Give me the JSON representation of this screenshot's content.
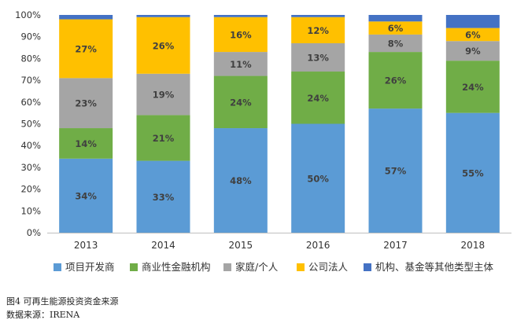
{
  "chart_data": {
    "type": "bar",
    "stacked": true,
    "percent": true,
    "categories": [
      "2013",
      "2014",
      "2015",
      "2016",
      "2017",
      "2018"
    ],
    "series": [
      {
        "name": "项目开发商",
        "color": "#5b9bd5",
        "values": [
          34,
          33,
          48,
          50,
          57,
          55
        ]
      },
      {
        "name": "商业性金融机构",
        "color": "#70ad47",
        "values": [
          14,
          21,
          24,
          24,
          26,
          24
        ]
      },
      {
        "name": "家庭/个人",
        "color": "#a5a5a5",
        "values": [
          23,
          19,
          11,
          13,
          8,
          9
        ]
      },
      {
        "name": "公司法人",
        "color": "#ffc000",
        "values": [
          27,
          26,
          16,
          12,
          6,
          6
        ]
      },
      {
        "name": "机构、基金等其他类型主体",
        "color": "#4472c4",
        "values": [
          2,
          1,
          1,
          1,
          3,
          6
        ]
      }
    ],
    "data_labels": [
      [
        "34%",
        "33%",
        "48%",
        "50%",
        "57%",
        "55%"
      ],
      [
        "14%",
        "21%",
        "24%",
        "24%",
        "26%",
        "24%"
      ],
      [
        "23%",
        "19%",
        "11%",
        "13%",
        "8%",
        "9%"
      ],
      [
        "27%",
        "26%",
        "16%",
        "12%",
        "6%",
        "6%"
      ],
      [
        "",
        "",
        "",
        "",
        "",
        ""
      ]
    ],
    "yticks": [
      "0%",
      "10%",
      "20%",
      "30%",
      "40%",
      "50%",
      "60%",
      "70%",
      "80%",
      "90%",
      "100%"
    ],
    "ylim": [
      0,
      100
    ],
    "grid": false,
    "legend_position": "bottom"
  },
  "caption": "图4  可再生能源投资资金来源",
  "source": "数据来源：IRENA"
}
